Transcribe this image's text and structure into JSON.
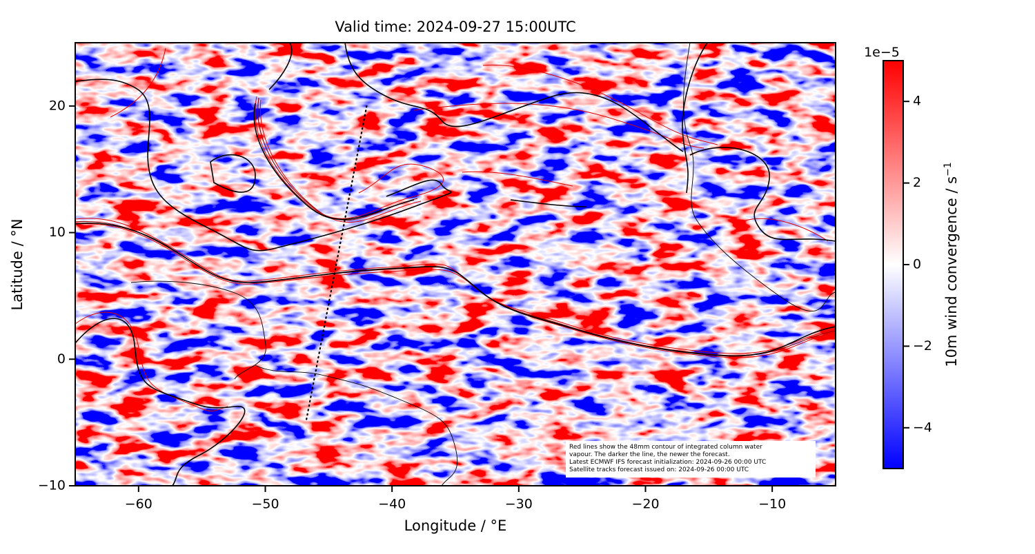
{
  "chart_data": {
    "type": "map",
    "title": "Valid time: 2024-09-27 15:00UTC",
    "x_label": "Longitude / °E",
    "y_label": "Latitude / °N",
    "xlim": [
      -65,
      -5
    ],
    "ylim": [
      -10,
      25
    ],
    "xticks": [
      {
        "value": -60,
        "label": "−60"
      },
      {
        "value": -50,
        "label": "−50"
      },
      {
        "value": -40,
        "label": "−40"
      },
      {
        "value": -30,
        "label": "−30"
      },
      {
        "value": -20,
        "label": "−20"
      },
      {
        "value": -10,
        "label": "−10"
      }
    ],
    "yticks": [
      {
        "value": -10,
        "label": "−10"
      },
      0,
      10,
      20
    ],
    "colorbar": {
      "label": "10m wind convergence / s",
      "label_exponent": "−1",
      "offset_text": "1e−5",
      "clim": [
        -5,
        5
      ],
      "ticks": [
        {
          "value": -4,
          "label": "−4"
        },
        {
          "value": -2,
          "label": "−2"
        },
        0,
        2,
        4
      ],
      "colors": [
        "#0000ff",
        "#ffffff",
        "#ff0000"
      ]
    },
    "track": {
      "x": [
        -42,
        -46.8
      ],
      "y": [
        20,
        -5
      ],
      "color": "#000000"
    },
    "annotation": [
      "Red lines show the 48mm contour of integrated column water",
      "vapour. The darker the line, the newer the forecast.",
      "Latest ECMWF IFS forecast initialization: 2024-09-26 00:00 UTC",
      "Satellite tracks forecast issued on: 2024-09-26 00:00 UTC"
    ]
  }
}
